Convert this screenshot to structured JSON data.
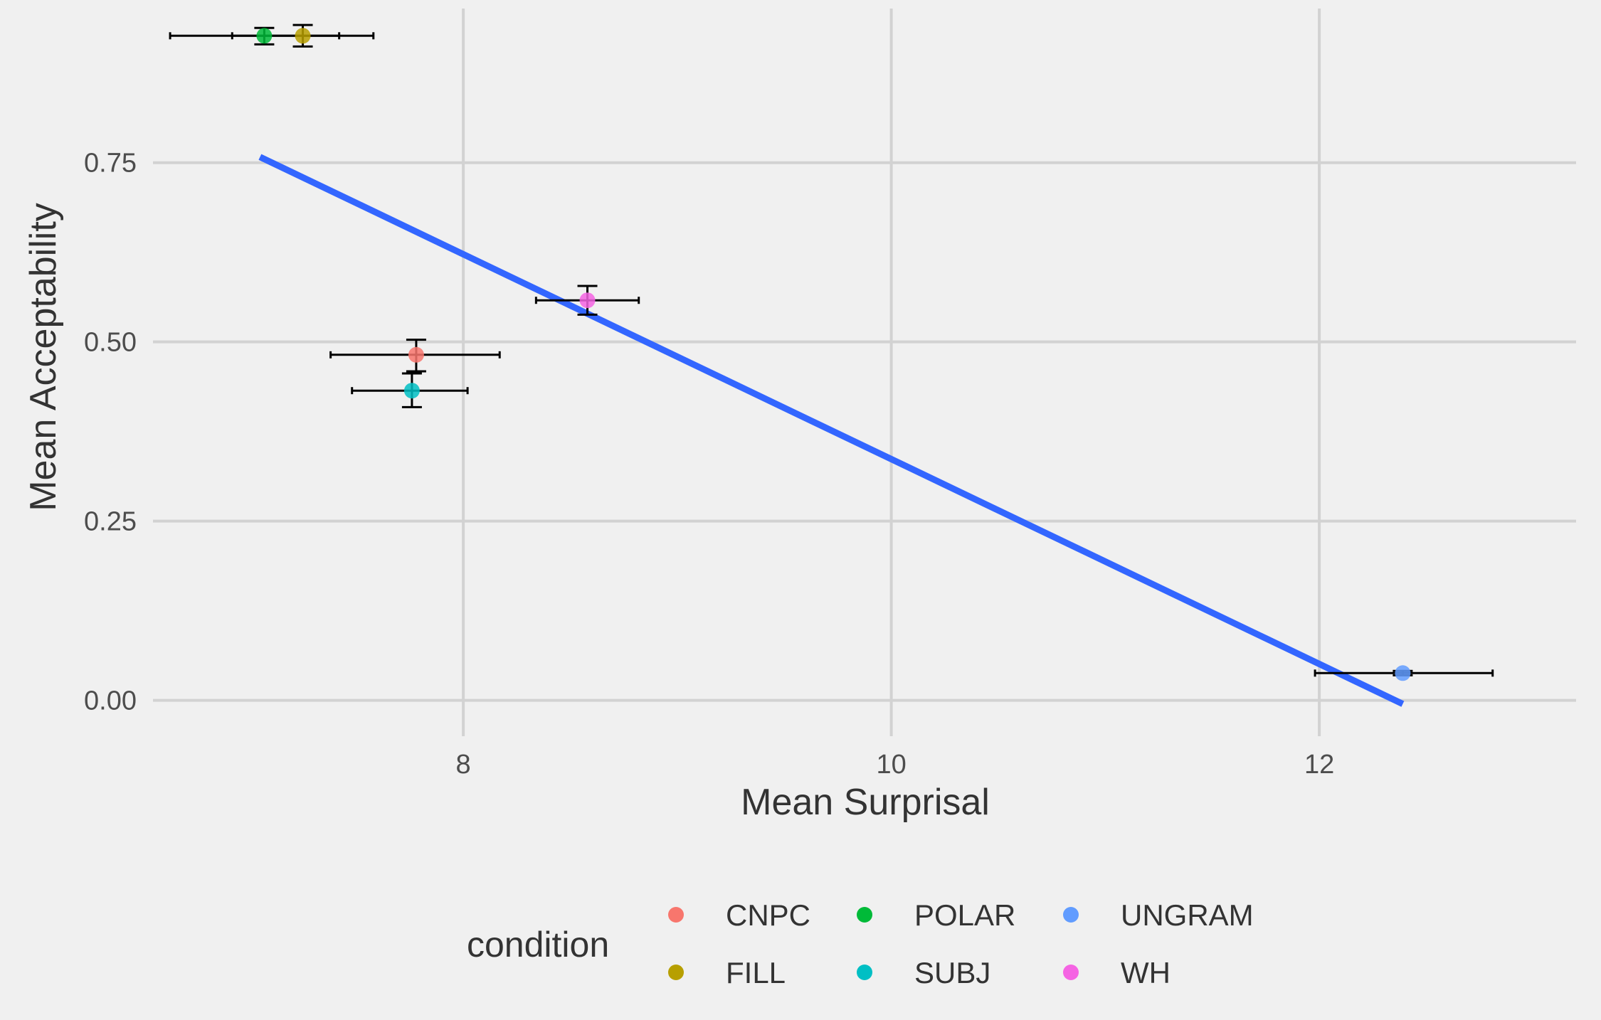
{
  "chart_data": {
    "type": "scatter",
    "xlabel": "Mean Surprisal",
    "ylabel": "Mean Acceptability",
    "xlim": [
      6.55,
      13.2
    ],
    "ylim": [
      -0.05,
      0.965
    ],
    "x_ticks": [
      8,
      10,
      12
    ],
    "x_tick_labels": [
      "8",
      "10",
      "12"
    ],
    "y_ticks": [
      0.0,
      0.25,
      0.5,
      0.75
    ],
    "y_tick_labels": [
      "0.00",
      "0.25",
      "0.50",
      "0.75"
    ],
    "grid": true,
    "legend": {
      "title": "condition",
      "position": "bottom"
    },
    "points": [
      {
        "condition": "CNPC",
        "x": 7.78,
        "y": 0.482,
        "x_err": [
          7.38,
          8.17
        ],
        "y_err": [
          0.459,
          0.503
        ],
        "color": "#f8766d"
      },
      {
        "condition": "FILL",
        "x": 7.25,
        "y": 0.927,
        "x_err": [
          6.92,
          7.58
        ],
        "y_err": [
          0.912,
          0.942
        ],
        "color": "#b79f00"
      },
      {
        "condition": "POLAR",
        "x": 7.07,
        "y": 0.927,
        "x_err": [
          6.63,
          7.42
        ],
        "y_err": [
          0.915,
          0.938
        ],
        "color": "#00ba38"
      },
      {
        "condition": "SUBJ",
        "x": 7.76,
        "y": 0.432,
        "x_err": [
          7.48,
          8.02
        ],
        "y_err": [
          0.409,
          0.456
        ],
        "color": "#00bfc4"
      },
      {
        "condition": "UNGRAM",
        "x": 12.39,
        "y": 0.038,
        "x_err": [
          11.98,
          12.81
        ],
        "y_err": [
          0.035,
          0.041
        ],
        "color": "#619cff"
      },
      {
        "condition": "WH",
        "x": 8.58,
        "y": 0.558,
        "x_err": [
          8.34,
          8.82
        ],
        "y_err": [
          0.538,
          0.578
        ],
        "color": "#f564e3"
      }
    ],
    "fit_line": {
      "x": [
        7.05,
        12.39
      ],
      "y": [
        0.758,
        -0.005
      ],
      "color": "#3366ff"
    },
    "legend_entries": [
      {
        "label": "CNPC",
        "color": "#f8766d"
      },
      {
        "label": "FILL",
        "color": "#b79f00"
      },
      {
        "label": "POLAR",
        "color": "#00ba38"
      },
      {
        "label": "SUBJ",
        "color": "#00bfc4"
      },
      {
        "label": "UNGRAM",
        "color": "#619cff"
      },
      {
        "label": "WH",
        "color": "#f564e3"
      }
    ]
  }
}
